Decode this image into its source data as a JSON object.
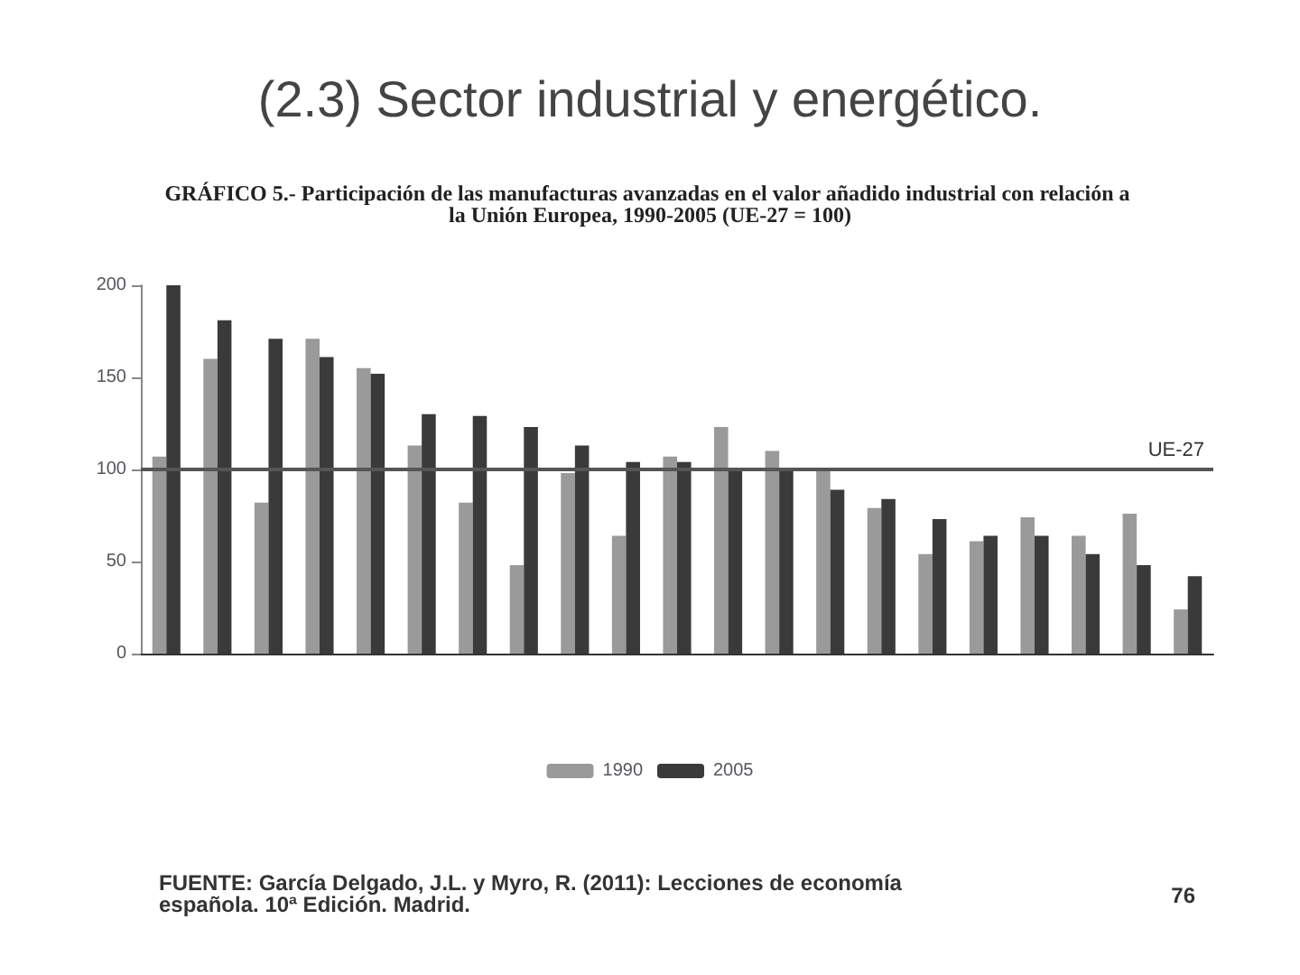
{
  "chart_data": {
    "type": "bar",
    "title": "(2.3) Sector industrial y energético.",
    "subtitle": "GRÁFICO 5.- Participación de las manufacturas avanzadas en el valor añadido industrial con relación a la Unión Europea, 1990-2005 (UE-27 = 100)",
    "categories": [
      null,
      null,
      null,
      null,
      null,
      null,
      null,
      null,
      null,
      null,
      null,
      null,
      null,
      null,
      null,
      null,
      null,
      null,
      null,
      null,
      null
    ],
    "series": [
      {
        "name": "1990",
        "color": "#9a9a9a",
        "values": [
          107,
          160,
          82,
          171,
          155,
          113,
          82,
          48,
          98,
          64,
          107,
          123,
          110,
          101,
          79,
          54,
          61,
          74,
          64,
          76,
          24
        ]
      },
      {
        "name": "2005",
        "color": "#3a3a3a",
        "values": [
          200,
          181,
          171,
          161,
          152,
          130,
          129,
          123,
          113,
          104,
          104,
          101,
          101,
          89,
          84,
          73,
          64,
          64,
          54,
          48,
          42
        ]
      }
    ],
    "ylim": [
      0,
      200
    ],
    "yticks": [
      0,
      50,
      100,
      150,
      200
    ],
    "grid": false,
    "legend": "bottom",
    "ref_lines": [
      {
        "axis": "y",
        "value": 100,
        "label": "UE-27",
        "color": "#555555"
      }
    ],
    "annotations": [
      "FUENTE: García Delgado, J.L. y Myro, R. (2011): Lecciones de economía española. 10ª Edición. Madrid.",
      "76"
    ]
  }
}
